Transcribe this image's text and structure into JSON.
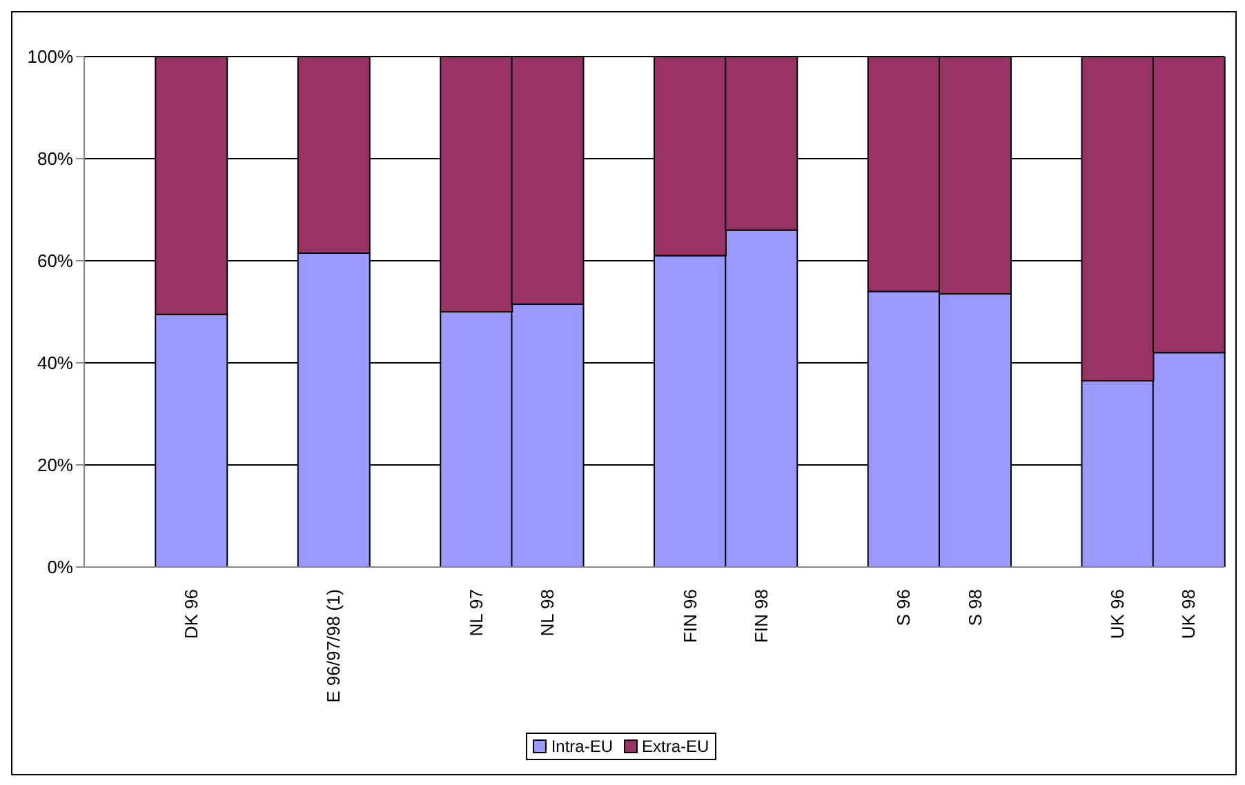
{
  "chart_data": {
    "type": "bar",
    "stacked": true,
    "categories": [
      null,
      "DK 96",
      null,
      "E 96/97/98 (1)",
      null,
      "NL 97",
      "NL 98",
      null,
      "FIN 96",
      "FIN 98",
      null,
      "S 96",
      "S 98",
      null,
      "UK 96",
      "UK 98"
    ],
    "series": [
      {
        "name": "Intra-EU",
        "color": "#9999ff",
        "values": [
          null,
          49.5,
          null,
          61.5,
          null,
          50,
          51.5,
          null,
          61,
          66,
          null,
          54,
          53.5,
          null,
          36.5,
          42
        ]
      },
      {
        "name": "Extra-EU",
        "color": "#993366",
        "values": [
          null,
          50.5,
          null,
          38.5,
          null,
          50,
          48.5,
          null,
          39,
          34,
          null,
          46,
          46.5,
          null,
          63.5,
          58
        ]
      }
    ],
    "ylim": [
      0,
      100
    ],
    "yticks": [
      {
        "value": 0,
        "label": "0%"
      },
      {
        "value": 20,
        "label": "20%"
      },
      {
        "value": 40,
        "label": "40%"
      },
      {
        "value": 60,
        "label": "60%"
      },
      {
        "value": 80,
        "label": "80%"
      },
      {
        "value": 100,
        "label": "100%"
      }
    ],
    "grid": "y",
    "legend": "bottom"
  }
}
